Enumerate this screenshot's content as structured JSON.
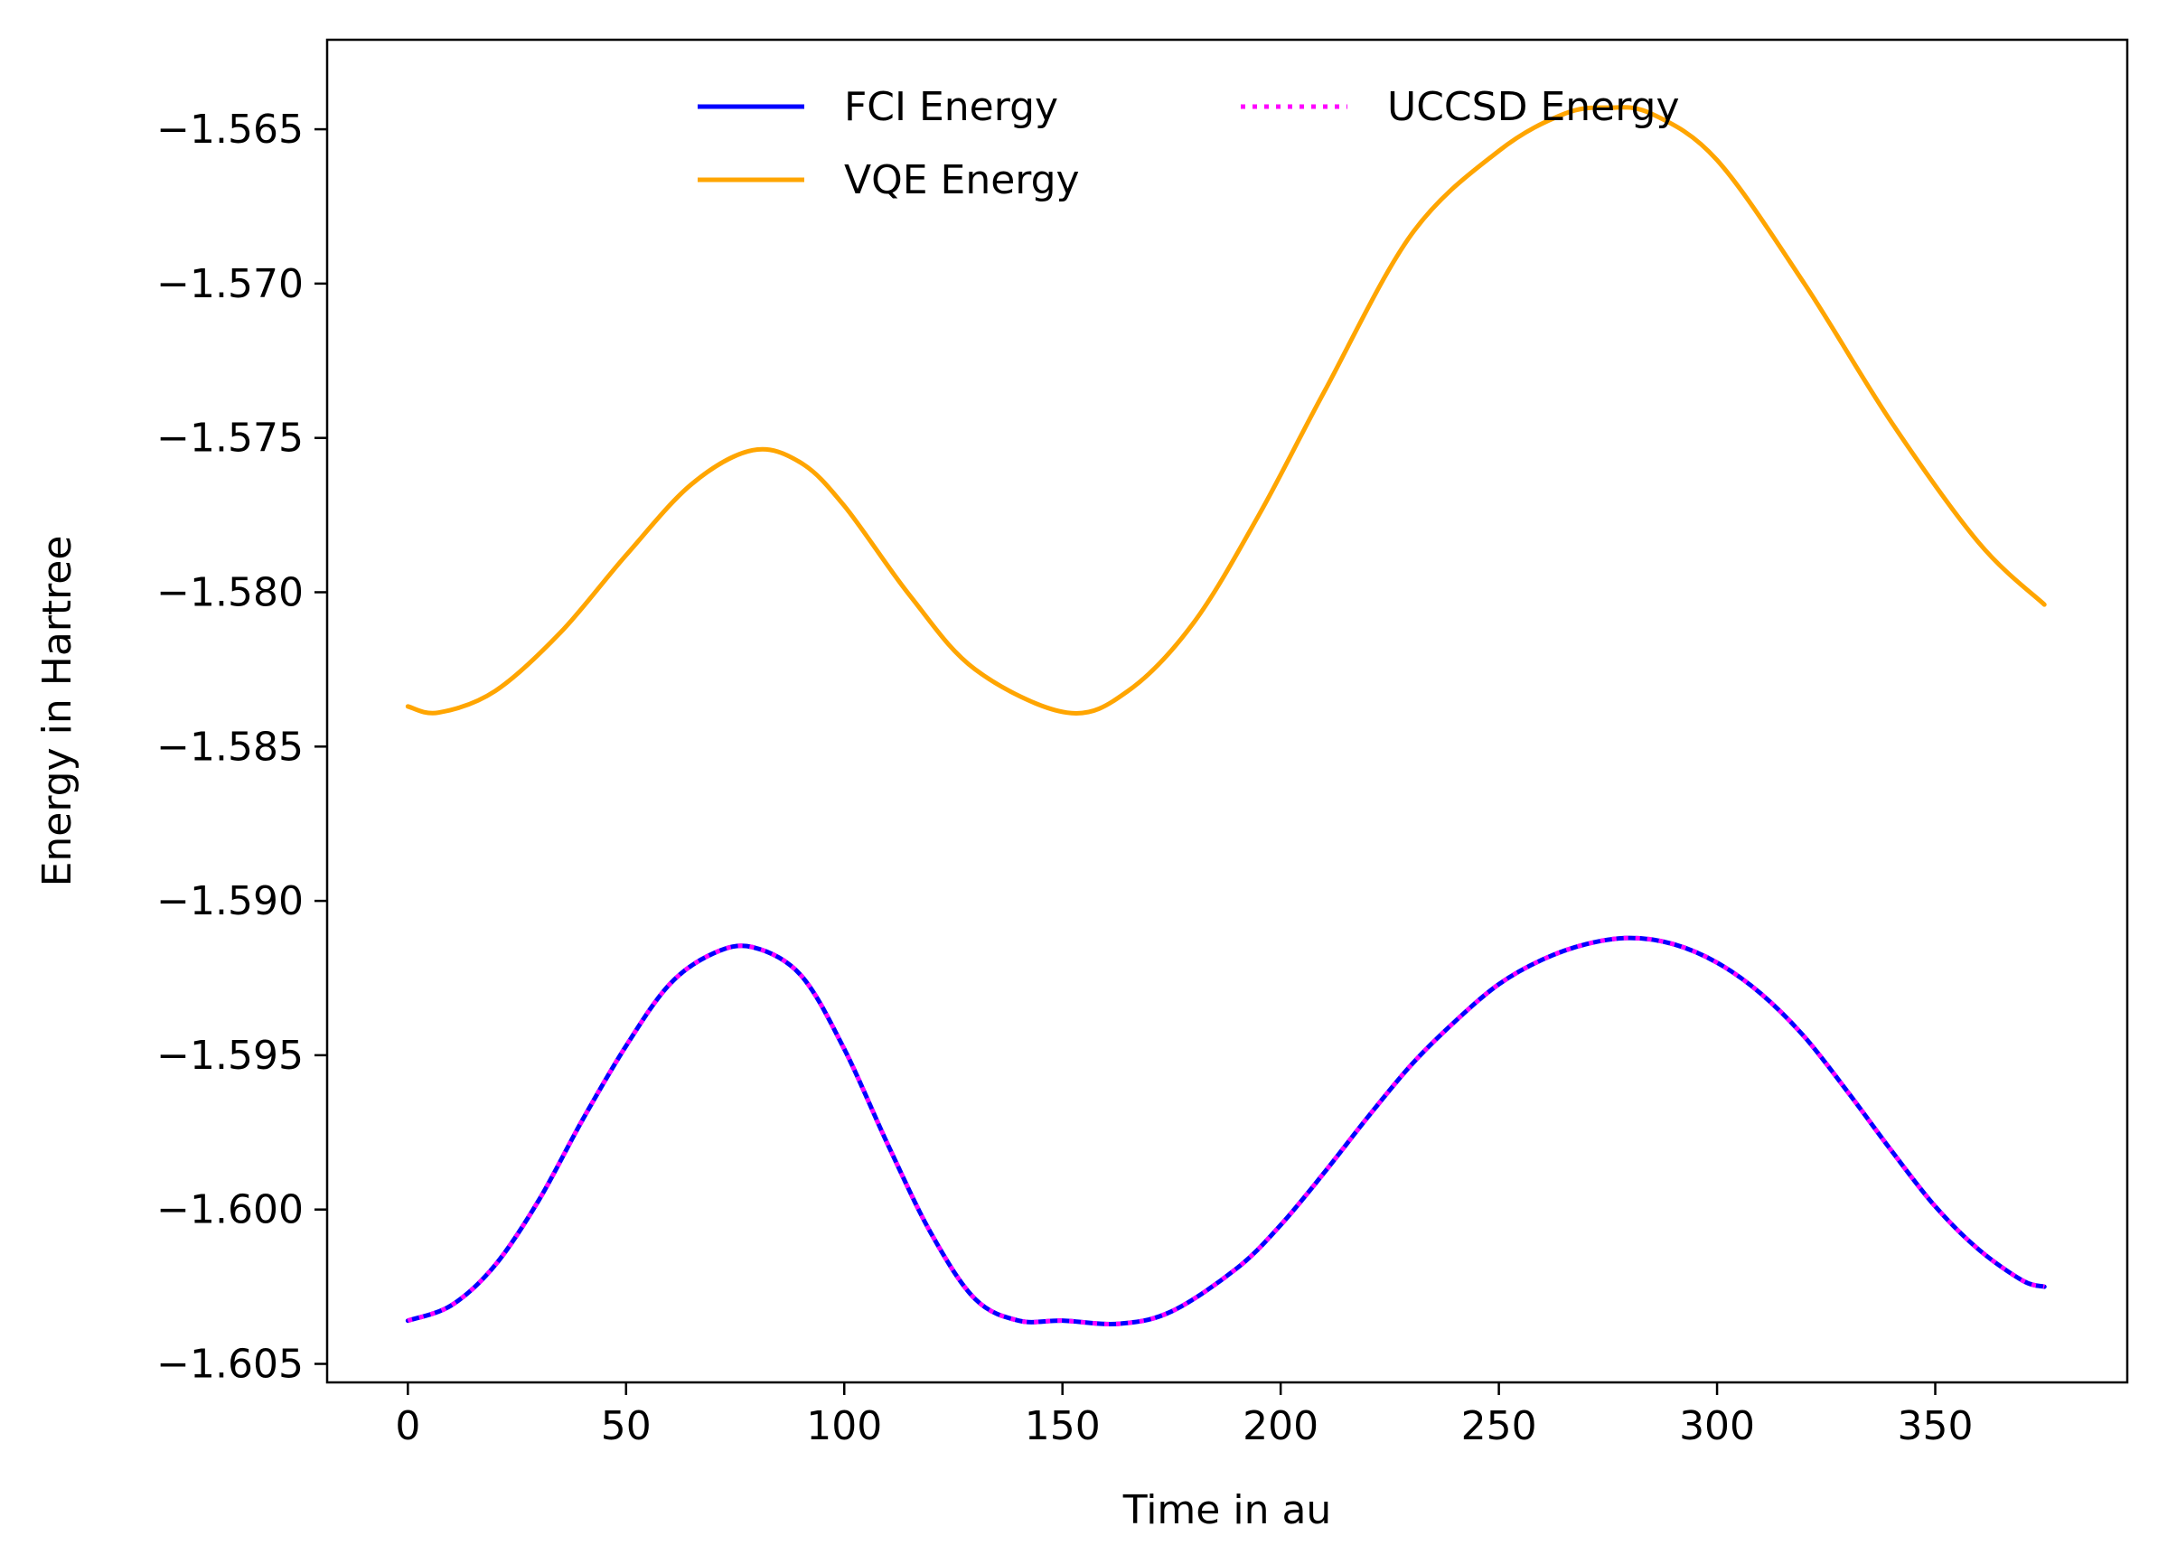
{
  "chart_data": {
    "type": "line",
    "title": "",
    "xlabel": "Time in au",
    "ylabel": "Energy in Hartree",
    "xlim": [
      -18.5,
      394
    ],
    "ylim": [
      -1.6056,
      -1.5621
    ],
    "xticks": [
      0,
      50,
      100,
      150,
      200,
      250,
      300,
      350
    ],
    "xtick_labels": [
      "0",
      "50",
      "100",
      "150",
      "200",
      "250",
      "300",
      "350"
    ],
    "yticks": [
      -1.565,
      -1.57,
      -1.575,
      -1.58,
      -1.585,
      -1.59,
      -1.595,
      -1.6,
      -1.605
    ],
    "ytick_labels": [
      "−1.565",
      "−1.570",
      "−1.575",
      "−1.580",
      "−1.585",
      "−1.590",
      "−1.595",
      "−1.600",
      "−1.605"
    ],
    "grid": false,
    "legend_placement": "top-center",
    "legend_columns": 2,
    "series": [
      {
        "name": "FCI Energy",
        "color": "#0000ff",
        "style": "solid",
        "x": [
          0,
          10,
          20,
          30,
          40,
          50,
          60,
          70,
          79,
          90,
          100,
          110,
          120,
          130,
          140,
          150,
          163,
          175,
          190,
          200,
          210,
          220,
          230,
          240,
          250,
          260,
          270,
          280,
          290,
          300,
          310,
          320,
          330,
          340,
          350,
          360,
          370,
          375
        ],
        "y": [
          -1.6036,
          -1.6031,
          -1.6018,
          -1.5997,
          -1.5971,
          -1.5947,
          -1.5927,
          -1.5917,
          -1.5915,
          -1.5924,
          -1.5948,
          -1.5979,
          -1.6008,
          -1.6029,
          -1.6036,
          -1.6036,
          -1.6037,
          -1.6033,
          -1.6019,
          -1.6005,
          -1.5988,
          -1.597,
          -1.5953,
          -1.5939,
          -1.5927,
          -1.5919,
          -1.5914,
          -1.5912,
          -1.5914,
          -1.592,
          -1.593,
          -1.5944,
          -1.5962,
          -1.5981,
          -1.5999,
          -1.6013,
          -1.6023,
          -1.6025
        ]
      },
      {
        "name": "UCCSD Energy",
        "color": "#ff00ff",
        "style": "dotted",
        "x": [
          0,
          10,
          20,
          30,
          40,
          50,
          60,
          70,
          79,
          90,
          100,
          110,
          120,
          130,
          140,
          150,
          163,
          175,
          190,
          200,
          210,
          220,
          230,
          240,
          250,
          260,
          270,
          280,
          290,
          300,
          310,
          320,
          330,
          340,
          350,
          360,
          370,
          375
        ],
        "y": [
          -1.6036,
          -1.6031,
          -1.6018,
          -1.5997,
          -1.5971,
          -1.5947,
          -1.5927,
          -1.5917,
          -1.5915,
          -1.5924,
          -1.5948,
          -1.5979,
          -1.6008,
          -1.6029,
          -1.6036,
          -1.6036,
          -1.6037,
          -1.6033,
          -1.6019,
          -1.6005,
          -1.5988,
          -1.597,
          -1.5953,
          -1.5939,
          -1.5927,
          -1.5919,
          -1.5914,
          -1.5912,
          -1.5914,
          -1.592,
          -1.593,
          -1.5944,
          -1.5962,
          -1.5981,
          -1.5999,
          -1.6013,
          -1.6023,
          -1.6025
        ]
      },
      {
        "name": "VQE Energy",
        "color": "#ffa500",
        "style": "solid",
        "x": [
          0,
          7,
          20,
          35,
          50,
          65,
          79,
          90,
          100,
          115,
          130,
          151,
          165,
          180,
          195,
          210,
          230,
          250,
          265,
          275,
          285,
          300,
          320,
          340,
          360,
          375
        ],
        "y": [
          -1.5837,
          -1.5839,
          -1.5832,
          -1.5813,
          -1.5788,
          -1.5765,
          -1.5754,
          -1.5758,
          -1.5772,
          -1.5801,
          -1.5825,
          -1.5839,
          -1.5832,
          -1.581,
          -1.5775,
          -1.5735,
          -1.5684,
          -1.5657,
          -1.5645,
          -1.5643,
          -1.5645,
          -1.566,
          -1.57,
          -1.5745,
          -1.5784,
          -1.5804
        ]
      }
    ]
  }
}
